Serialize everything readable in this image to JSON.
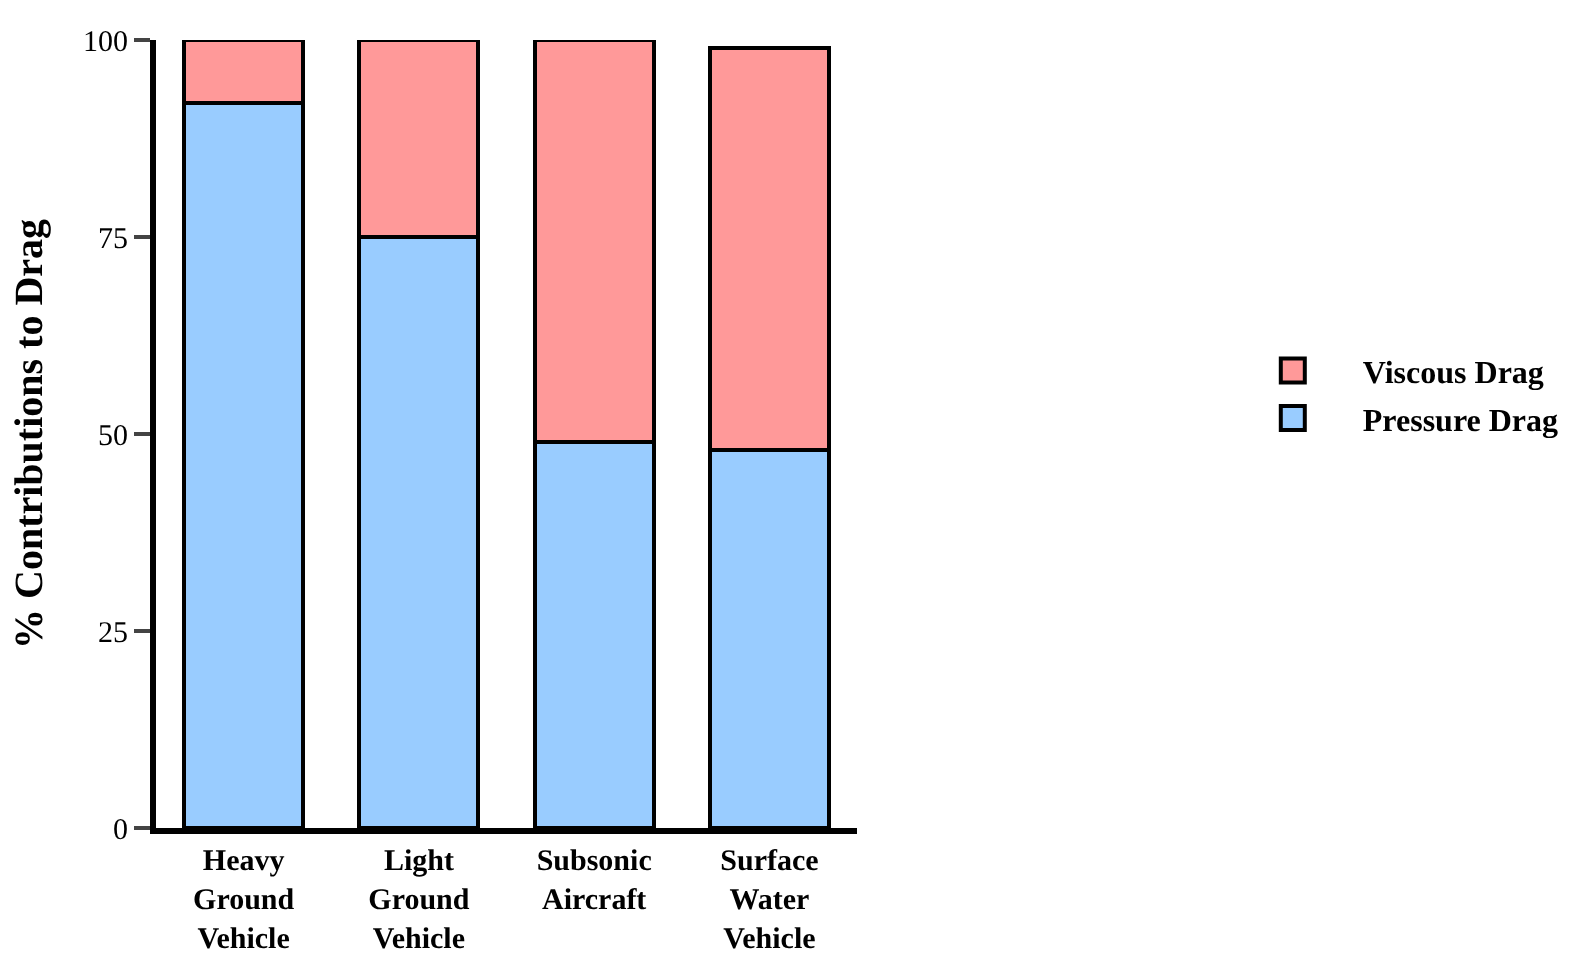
{
  "chart_data": {
    "type": "bar",
    "stacked": true,
    "ylabel": "% Contributions to Drag",
    "categories": [
      "Heavy\nGround\nVehicle",
      "Light\nGround\nVehicle",
      "Subsonic\nAircraft",
      "Surface\nWater\nVehicle"
    ],
    "series": [
      {
        "name": "Pressure Drag",
        "color": "#99ccff",
        "values": [
          92,
          75,
          49,
          48
        ]
      },
      {
        "name": "Viscous Drag",
        "color": "#ff9999",
        "values": [
          8,
          25,
          51,
          51
        ]
      }
    ],
    "ylim": [
      0,
      100
    ],
    "yticks": [
      0,
      25,
      50,
      75,
      100
    ],
    "legend": "right"
  }
}
